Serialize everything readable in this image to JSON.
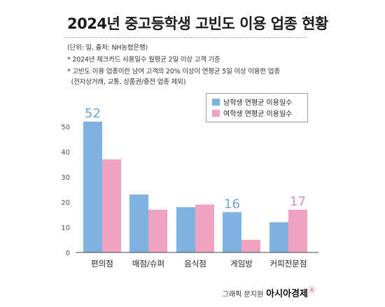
{
  "header": {
    "title": "2024년 중고등학생 고빈도 이용 업종 현황",
    "notes": [
      "(단위: 일, 출처: NH농협은행)",
      "* 2024년 체크카드 사용일수 월평균 2일 이상 고객 기준",
      "* 고빈도 이용 업종이란 남여 고객의 20% 이상이 연평균 5일 이상 이용한 업종",
      "  (전자상거래, 교통, 상품권/충전 업종 제외)"
    ]
  },
  "chart_data": {
    "type": "bar",
    "title": "2024년 중고등학생 고빈도 이용 업종 현황",
    "xlabel": "",
    "ylabel": "",
    "categories": [
      "편의점",
      "매점/슈퍼",
      "음식점",
      "게임방",
      "커피전문점"
    ],
    "series": [
      {
        "name": "남학생 연평균 이용일수",
        "values": [
          52,
          23,
          18,
          16,
          12
        ],
        "color": "#7fb2e0"
      },
      {
        "name": "여학생 연평균 이용일수",
        "values": [
          37,
          17,
          19,
          5,
          17
        ],
        "color": "#f0a2c1"
      }
    ],
    "y_ticks": [
      "0",
      "10",
      "20",
      "30",
      "40",
      "50"
    ],
    "ylim": [
      0,
      55
    ],
    "grid": false,
    "legend_position": "top-right",
    "highlight_labels": [
      {
        "series": 0,
        "category": 0,
        "text": "52"
      },
      {
        "series": 0,
        "category": 3,
        "text": "16"
      },
      {
        "series": 1,
        "category": 4,
        "text": "17"
      }
    ],
    "highlight_colors": [
      "#6fa3d6",
      "#e090b2"
    ],
    "axis_color": "#444444",
    "tick_color": "#555555"
  },
  "footer": {
    "credit": "그래픽 문지원",
    "brand": "아시아경제",
    "brand_mark": "Ⓐ"
  }
}
